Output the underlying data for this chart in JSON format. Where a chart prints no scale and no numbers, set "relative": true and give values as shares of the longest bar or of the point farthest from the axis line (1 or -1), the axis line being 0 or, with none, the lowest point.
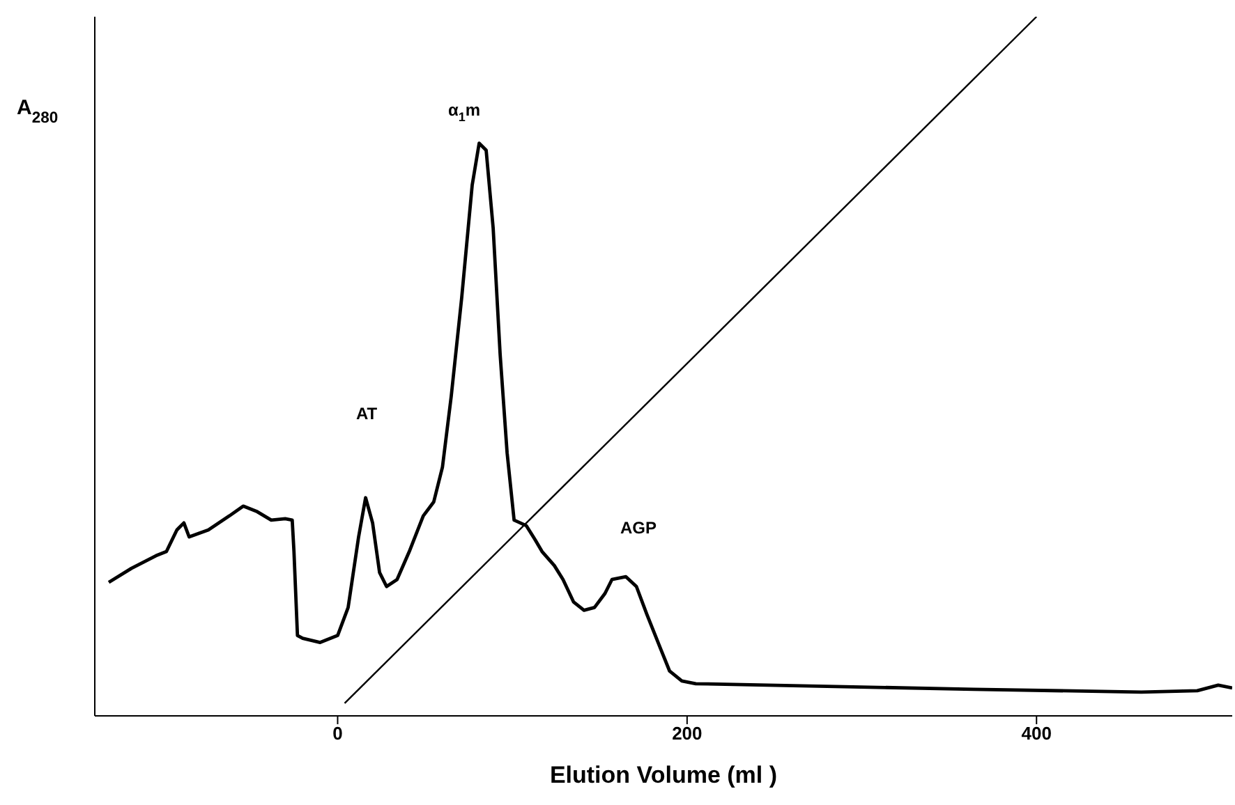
{
  "chart_data": {
    "type": "line",
    "relative": true,
    "xlabel": "Elution Volume (ml )",
    "ylabel": "A$_{280}$",
    "xlim": [
      -139,
      512
    ],
    "xticks": [
      0,
      200,
      400
    ],
    "grid": false,
    "marker": "none",
    "line_style": "solid",
    "series": [
      {
        "color": "#000000",
        "x": [
          -131,
          -118,
          -104,
          -98,
          -92,
          -88,
          -85,
          -74,
          -62,
          -54,
          -46,
          -38,
          -30,
          -26,
          -25,
          -23,
          -20,
          -10,
          0,
          6,
          12,
          16,
          20,
          24,
          28,
          34,
          41,
          49,
          55,
          60,
          65,
          71,
          77,
          81,
          85,
          89,
          93,
          97,
          101,
          108,
          113,
          117,
          124,
          129,
          135,
          141,
          147,
          153,
          157,
          165,
          171,
          177,
          185,
          190,
          197,
          205,
          285,
          364,
          460,
          492,
          504,
          512
        ],
        "values": [
          0.191,
          0.211,
          0.229,
          0.235,
          0.266,
          0.276,
          0.256,
          0.266,
          0.286,
          0.3,
          0.292,
          0.28,
          0.282,
          0.28,
          0.235,
          0.115,
          0.111,
          0.105,
          0.115,
          0.155,
          0.256,
          0.312,
          0.276,
          0.205,
          0.185,
          0.195,
          0.235,
          0.286,
          0.306,
          0.356,
          0.457,
          0.598,
          0.759,
          0.819,
          0.809,
          0.698,
          0.517,
          0.376,
          0.28,
          0.272,
          0.252,
          0.235,
          0.215,
          0.195,
          0.163,
          0.151,
          0.155,
          0.175,
          0.195,
          0.199,
          0.185,
          0.145,
          0.095,
          0.064,
          0.05,
          0.046,
          0.042,
          0.038,
          0.034,
          0.036,
          0.044,
          0.04
        ]
      },
      {
        "color": "#000000",
        "x": [
          4,
          400
        ],
        "values": [
          0.018,
          1
        ]
      }
    ],
    "annotations": [
      "AT",
      "α$_{1}$m",
      "AGP"
    ]
  }
}
